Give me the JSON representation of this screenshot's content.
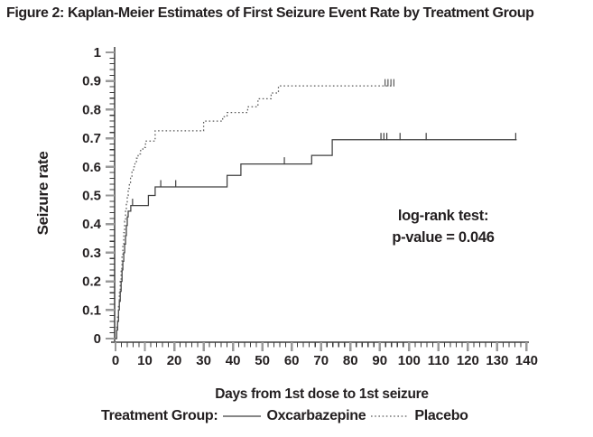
{
  "figure": {
    "title": "Figure 2: Kaplan-Meier Estimates of First Seizure Event Rate by Treatment Group",
    "annotation": {
      "line1": "log-rank test:",
      "line2": "p-value = 0.046"
    },
    "legend": {
      "prefix": "Treatment Group:",
      "items": [
        {
          "label": "Oxcarbazepine",
          "style": "solid"
        },
        {
          "label": "Placebo",
          "style": "dotted"
        }
      ]
    }
  },
  "colors": {
    "text": "#231f20",
    "axis_line": "#6e6e6e",
    "major_tick": "#9a9a9a",
    "minor_tick": "#3c3c3c",
    "solid_series": "#3f3f3f",
    "dotted_series": "#5a5a5a"
  },
  "chart_data": {
    "type": "line",
    "subtype": "kaplan-meier-step",
    "title": "Figure 2: Kaplan-Meier Estimates of First Seizure Event Rate by Treatment Group",
    "xlabel": "Days from 1st dose to 1st seizure",
    "ylabel": "Seizure rate",
    "xlim": [
      0,
      140
    ],
    "ylim": [
      0,
      1
    ],
    "x_tick_step": 10,
    "x_minor_step": 2,
    "y_tick_step": 0.1,
    "y_minor_step": 0.02,
    "x_tick_labels": [
      "0",
      "10",
      "20",
      "30",
      "40",
      "50",
      "60",
      "70",
      "80",
      "90",
      "100",
      "110",
      "120",
      "130",
      "140"
    ],
    "y_tick_labels": [
      "0",
      "0.1",
      "0.2",
      "0.3",
      "0.4",
      "0.5",
      "0.6",
      "0.7",
      "0.8",
      "0.9",
      "1"
    ],
    "grid": false,
    "legend_position": "bottom",
    "annotation_text": "log-rank test: p-value = 0.046",
    "series": [
      {
        "name": "Oxcarbazepine",
        "line_style": "solid",
        "points": [
          [
            0,
            0
          ],
          [
            0.4,
            0.03
          ],
          [
            0.7,
            0.06
          ],
          [
            1,
            0.1
          ],
          [
            1.3,
            0.13
          ],
          [
            1.6,
            0.165
          ],
          [
            1.9,
            0.2
          ],
          [
            2.2,
            0.24
          ],
          [
            2.5,
            0.27
          ],
          [
            2.8,
            0.3
          ],
          [
            3.1,
            0.33
          ],
          [
            3.4,
            0.36
          ],
          [
            3.7,
            0.395
          ],
          [
            4.0,
            0.425
          ],
          [
            4.3,
            0.445
          ],
          [
            5.2,
            0.465
          ],
          [
            11.2,
            0.5
          ],
          [
            13.5,
            0.53
          ],
          [
            38,
            0.57
          ],
          [
            42.7,
            0.61
          ],
          [
            66.8,
            0.64
          ],
          [
            73.8,
            0.695
          ],
          [
            136.6,
            0.695
          ]
        ],
        "censor_marks": [
          [
            5.8,
            0.465
          ],
          [
            15.4,
            0.53
          ],
          [
            20.5,
            0.53
          ],
          [
            57.5,
            0.61
          ],
          [
            90.4,
            0.695
          ],
          [
            91.4,
            0.695
          ],
          [
            92.4,
            0.695
          ],
          [
            96.9,
            0.695
          ],
          [
            105.8,
            0.695
          ],
          [
            136.3,
            0.695
          ]
        ]
      },
      {
        "name": "Placebo",
        "line_style": "dotted",
        "points": [
          [
            0,
            0
          ],
          [
            0.4,
            0.04
          ],
          [
            0.7,
            0.08
          ],
          [
            1,
            0.12
          ],
          [
            1.3,
            0.16
          ],
          [
            1.6,
            0.2
          ],
          [
            1.9,
            0.245
          ],
          [
            2.2,
            0.29
          ],
          [
            2.5,
            0.33
          ],
          [
            2.8,
            0.37
          ],
          [
            3.1,
            0.41
          ],
          [
            3.4,
            0.445
          ],
          [
            3.7,
            0.475
          ],
          [
            4.0,
            0.5
          ],
          [
            4.3,
            0.525
          ],
          [
            4.7,
            0.545
          ],
          [
            5.1,
            0.565
          ],
          [
            5.6,
            0.585
          ],
          [
            6.1,
            0.6
          ],
          [
            6.6,
            0.615
          ],
          [
            7.1,
            0.63
          ],
          [
            7.7,
            0.645
          ],
          [
            8.5,
            0.657
          ],
          [
            9.3,
            0.668
          ],
          [
            10.2,
            0.69
          ],
          [
            13.5,
            0.726
          ],
          [
            30,
            0.76
          ],
          [
            36.5,
            0.775
          ],
          [
            38,
            0.79
          ],
          [
            45,
            0.81
          ],
          [
            48.5,
            0.838
          ],
          [
            53,
            0.858
          ],
          [
            55.5,
            0.883
          ],
          [
            95,
            0.883
          ]
        ],
        "censor_marks": [
          [
            91.8,
            0.883
          ],
          [
            92.8,
            0.883
          ],
          [
            93.8,
            0.883
          ],
          [
            94.8,
            0.883
          ]
        ]
      }
    ]
  }
}
